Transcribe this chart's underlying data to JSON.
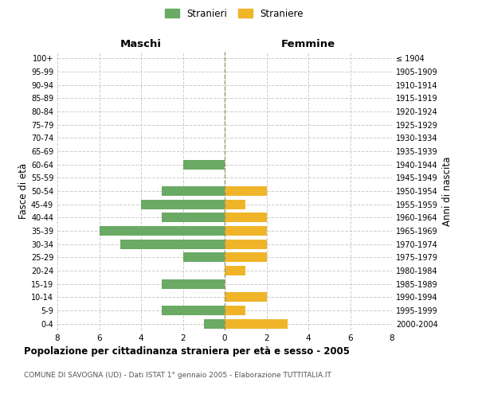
{
  "age_groups": [
    "0-4",
    "5-9",
    "10-14",
    "15-19",
    "20-24",
    "25-29",
    "30-34",
    "35-39",
    "40-44",
    "45-49",
    "50-54",
    "55-59",
    "60-64",
    "65-69",
    "70-74",
    "75-79",
    "80-84",
    "85-89",
    "90-94",
    "95-99",
    "100+"
  ],
  "birth_years": [
    "2000-2004",
    "1995-1999",
    "1990-1994",
    "1985-1989",
    "1980-1984",
    "1975-1979",
    "1970-1974",
    "1965-1969",
    "1960-1964",
    "1955-1959",
    "1950-1954",
    "1945-1949",
    "1940-1944",
    "1935-1939",
    "1930-1934",
    "1925-1929",
    "1920-1924",
    "1915-1919",
    "1910-1914",
    "1905-1909",
    "≤ 1904"
  ],
  "males": [
    1,
    3,
    0,
    3,
    0,
    2,
    5,
    6,
    3,
    4,
    3,
    0,
    2,
    0,
    0,
    0,
    0,
    0,
    0,
    0,
    0
  ],
  "females": [
    3,
    1,
    2,
    0,
    1,
    2,
    2,
    2,
    2,
    1,
    2,
    0,
    0,
    0,
    0,
    0,
    0,
    0,
    0,
    0,
    0
  ],
  "male_color": "#6aaa64",
  "female_color": "#f0b429",
  "title": "Popolazione per cittadinanza straniera per età e sesso - 2005",
  "subtitle": "COMUNE DI SAVOGNA (UD) - Dati ISTAT 1° gennaio 2005 - Elaborazione TUTTITALIA.IT",
  "ylabel_left": "Fasce di età",
  "ylabel_right": "Anni di nascita",
  "xlabel_left": "Maschi",
  "xlabel_right": "Femmine",
  "legend_male": "Stranieri",
  "legend_female": "Straniere",
  "xlim": 8,
  "background_color": "#ffffff",
  "grid_color": "#cccccc"
}
